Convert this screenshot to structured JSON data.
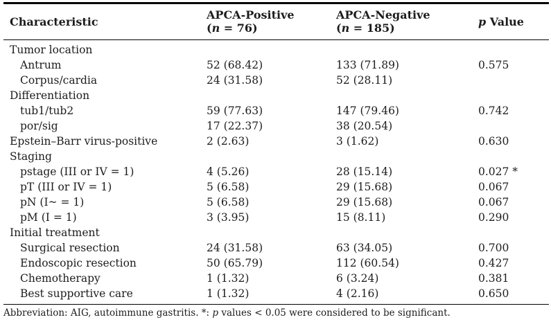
{
  "header": {
    "characteristic": "Characteristic",
    "apca_positive": {
      "name": "APCA-Positive",
      "n_prefix": "(",
      "n_symbol": "n",
      "n_suffix": " = 76)"
    },
    "apca_negative": {
      "name": "APCA-Negative",
      "n_prefix": "(",
      "n_symbol": "n",
      "n_suffix": " = 185)"
    },
    "p_value": {
      "symbol": "p",
      "label": " Value"
    }
  },
  "rows": [
    {
      "label": "Tumor location",
      "level": 0,
      "pos": "",
      "neg": "",
      "p": ""
    },
    {
      "label": "Antrum",
      "level": 1,
      "pos": "52 (68.42)",
      "neg": "133 (71.89)",
      "p": "0.575"
    },
    {
      "label": "Corpus/cardia",
      "level": 1,
      "pos": "24 (31.58)",
      "neg": "52 (28.11)",
      "p": ""
    },
    {
      "label": "Differentiation",
      "level": 0,
      "pos": "",
      "neg": "",
      "p": ""
    },
    {
      "label": "tub1/tub2",
      "level": 1,
      "pos": "59 (77.63)",
      "neg": "147 (79.46)",
      "p": "0.742"
    },
    {
      "label": "por/sig",
      "level": 1,
      "pos": "17 (22.37)",
      "neg": "38 (20.54)",
      "p": ""
    },
    {
      "label": "Epstein–Barr virus-positive",
      "level": 0,
      "pos": "2 (2.63)",
      "neg": "3 (1.62)",
      "p": "0.630"
    },
    {
      "label": "Staging",
      "level": 0,
      "pos": "",
      "neg": "",
      "p": ""
    },
    {
      "label": "pstage (III or IV = 1)",
      "level": 1,
      "pos": "4 (5.26)",
      "neg": "28 (15.14)",
      "p": "0.027 *"
    },
    {
      "label": "pT (III or IV = 1)",
      "level": 1,
      "pos": "5 (6.58)",
      "neg": "29 (15.68)",
      "p": "0.067"
    },
    {
      "label": "pN (I~ = 1)",
      "level": 1,
      "pos": "5 (6.58)",
      "neg": "29 (15.68)",
      "p": "0.067"
    },
    {
      "label": "pM (I = 1)",
      "level": 1,
      "pos": "3 (3.95)",
      "neg": "15 (8.11)",
      "p": "0.290"
    },
    {
      "label": "Initial treatment",
      "level": 0,
      "pos": "",
      "neg": "",
      "p": ""
    },
    {
      "label": "Surgical resection",
      "level": 1,
      "pos": "24 (31.58)",
      "neg": "63 (34.05)",
      "p": "0.700"
    },
    {
      "label": "Endoscopic resection",
      "level": 1,
      "pos": "50 (65.79)",
      "neg": "112 (60.54)",
      "p": "0.427"
    },
    {
      "label": "Chemotherapy",
      "level": 1,
      "pos": "1 (1.32)",
      "neg": "6 (3.24)",
      "p": "0.381"
    },
    {
      "label": "Best supportive care",
      "level": 1,
      "pos": "1 (1.32)",
      "neg": "4 (2.16)",
      "p": "0.650"
    }
  ],
  "footnote": {
    "part1": "Abbreviation: AIG, autoimmune gastritis. *: ",
    "p_symbol": "p",
    "part2": " values < 0.05 were considered to be significant."
  }
}
